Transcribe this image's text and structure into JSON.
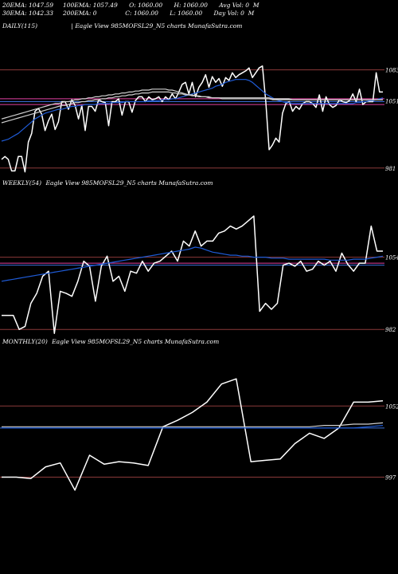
{
  "header": {
    "line1": "20EMA: 1047.59     100EMA: 1057.49      O: 1060.00      H: 1060.00      Avg Vol: 0  M",
    "line2": "30EMA: 1042.33     200EMA: 0               C: 1060.00      L: 1060.00      Day Vol: 0  M"
  },
  "colors": {
    "background": "#000000",
    "price": "#ffffff",
    "ema_blue": "#1f5bd6",
    "ema_white": "#cfcfcf",
    "level_red": "#8b3a3a",
    "level_pink": "#e040a0",
    "level_blue": "#3a6fd8"
  },
  "chart_data": [
    {
      "type": "line",
      "title": "DAILY(115)",
      "subtitle": "| Eagle   View  985MOFSL29_N5 charts MunafaSutra.com",
      "ylim": [
        975,
        1091
      ],
      "y_ticks": [
        {
          "label": "1083",
          "value": 1083
        },
        {
          "label": "1051",
          "value": 1051
        },
        {
          "label": "981",
          "value": 981
        }
      ],
      "levels": [
        {
          "value": 1083,
          "color": "level_red"
        },
        {
          "value": 1053,
          "color": "level_pink"
        },
        {
          "value": 1050,
          "color": "level_blue"
        },
        {
          "value": 1047,
          "color": "level_pink"
        },
        {
          "value": 981,
          "color": "level_red"
        }
      ],
      "series": [
        {
          "role": "price",
          "values": [
            990,
            993,
            990,
            978,
            978,
            993,
            993,
            977,
            1008,
            1017,
            1040,
            1043,
            1037,
            1020,
            1030,
            1037,
            1021,
            1029,
            1050,
            1050,
            1042,
            1052,
            1046,
            1032,
            1046,
            1020,
            1045,
            1045,
            1040,
            1052,
            1050,
            1049,
            1025,
            1050,
            1050,
            1053,
            1036,
            1050,
            1050,
            1039,
            1051,
            1055,
            1055,
            1050,
            1055,
            1052,
            1053,
            1055,
            1050,
            1055,
            1052,
            1058,
            1053,
            1060,
            1068,
            1070,
            1058,
            1070,
            1055,
            1065,
            1070,
            1078,
            1065,
            1076,
            1070,
            1074,
            1066,
            1075,
            1072,
            1080,
            1075,
            1078,
            1080,
            1082,
            1085,
            1075,
            1080,
            1085,
            1087,
            1050,
            1000,
            1005,
            1012,
            1008,
            1038,
            1048,
            1050,
            1040,
            1045,
            1042,
            1048,
            1050,
            1050,
            1048,
            1044,
            1057,
            1040,
            1055,
            1047,
            1044,
            1046,
            1052,
            1050,
            1049,
            1051,
            1058,
            1050,
            1063,
            1047,
            1050,
            1050,
            1050,
            1080,
            1060,
            1060
          ],
          "color": "price"
        },
        {
          "role": "ema",
          "values": [
            1009,
            1010,
            1011,
            1013,
            1015,
            1017,
            1020,
            1023,
            1026,
            1029,
            1032,
            1034,
            1036,
            1038,
            1039,
            1040,
            1041,
            1042,
            1042,
            1043,
            1044,
            1045,
            1045,
            1046,
            1046,
            1047,
            1047,
            1047,
            1047,
            1048,
            1048,
            1048,
            1048,
            1049,
            1049,
            1049,
            1049,
            1050,
            1050,
            1050,
            1050,
            1050,
            1050,
            1050,
            1051,
            1051,
            1051,
            1051,
            1052,
            1052,
            1052,
            1053,
            1053,
            1054,
            1055,
            1056,
            1057,
            1058,
            1059,
            1060,
            1061,
            1062,
            1063,
            1064,
            1066,
            1067,
            1068,
            1070,
            1071,
            1072,
            1073,
            1073,
            1073,
            1073,
            1072,
            1070,
            1067,
            1064,
            1061,
            1058,
            1056,
            1054,
            1052,
            1051,
            1050,
            1049,
            1049,
            1048,
            1048,
            1048,
            1048,
            1048,
            1048,
            1048,
            1048,
            1048,
            1048,
            1048,
            1048,
            1048,
            1048,
            1048,
            1048,
            1048,
            1048,
            1048,
            1049,
            1049,
            1050,
            1050,
            1051,
            1051,
            1052,
            1053,
            1054
          ],
          "color": "ema_blue"
        },
        {
          "role": "ema",
          "values": [
            1032,
            1033,
            1034,
            1035,
            1036,
            1037,
            1038,
            1039,
            1040,
            1041,
            1042,
            1043,
            1044,
            1045,
            1046,
            1047,
            1048,
            1048,
            1049,
            1050,
            1050,
            1051,
            1052,
            1052,
            1053,
            1053,
            1054,
            1054,
            1055,
            1055,
            1056,
            1056,
            1057,
            1057,
            1058,
            1058,
            1059,
            1059,
            1060,
            1060,
            1061,
            1061,
            1062,
            1062,
            1062,
            1063,
            1063,
            1063,
            1063,
            1063,
            1062,
            1062,
            1061,
            1060,
            1059,
            1058,
            1057,
            1057,
            1056,
            1056,
            1055,
            1055,
            1055,
            1054,
            1054,
            1054,
            1054,
            1054,
            1054,
            1054,
            1054,
            1054,
            1054,
            1054,
            1054,
            1054,
            1054,
            1054,
            1054,
            1054,
            1054,
            1053,
            1053,
            1053,
            1053,
            1053,
            1053,
            1052,
            1052,
            1052,
            1052,
            1052,
            1052,
            1052,
            1052,
            1052,
            1052,
            1052,
            1052,
            1052,
            1052,
            1052,
            1052,
            1052,
            1052,
            1052,
            1052,
            1052,
            1052,
            1052,
            1052,
            1052,
            1052,
            1052,
            1052
          ],
          "color": "ema_white"
        },
        {
          "role": "ema",
          "values": [
            1028,
            1029,
            1030,
            1031,
            1032,
            1033,
            1034,
            1035,
            1036,
            1037,
            1038,
            1039,
            1040,
            1041,
            1042,
            1043,
            1044,
            1045,
            1046,
            1046,
            1047,
            1048,
            1049,
            1049,
            1050,
            1050,
            1051,
            1051,
            1052,
            1052,
            1053,
            1053,
            1054,
            1054,
            1055,
            1055,
            1056,
            1056,
            1057,
            1057,
            1058,
            1058,
            1059,
            1059,
            1059,
            1060,
            1060,
            1060,
            1060,
            1060,
            1060,
            1059,
            1059,
            1058,
            1058,
            1057,
            1057,
            1056,
            1056,
            1055,
            1055,
            1055,
            1054,
            1054,
            1054,
            1054,
            1053,
            1053,
            1053,
            1053,
            1053,
            1053,
            1053,
            1053,
            1053,
            1053,
            1053,
            1053,
            1053,
            1053,
            1053,
            1052,
            1052,
            1052,
            1052,
            1052,
            1052,
            1052,
            1052,
            1052,
            1052,
            1052,
            1052,
            1052,
            1052,
            1052,
            1052,
            1052,
            1052,
            1052,
            1052,
            1052,
            1052,
            1052,
            1052,
            1052,
            1052,
            1052,
            1052,
            1052,
            1052,
            1052,
            1052,
            1052,
            1052
          ],
          "color": "ema_white"
        }
      ]
    },
    {
      "type": "line",
      "title": "WEEKLY(54)",
      "subtitle": "Eagle   View  985MOFSL29_N5 charts MunafaSutra.com",
      "ylim": [
        975,
        1091
      ],
      "y_ticks": [
        {
          "label": "1054",
          "value": 1054
        },
        {
          "label": "982",
          "value": 982
        }
      ],
      "levels": [
        {
          "value": 1054,
          "color": "level_red"
        },
        {
          "value": 1048,
          "color": "level_pink"
        },
        {
          "value": 1046,
          "color": "level_blue"
        },
        {
          "value": 982,
          "color": "level_red"
        }
      ],
      "series": [
        {
          "role": "price",
          "values": [
            996,
            996,
            996,
            982,
            985,
            1008,
            1018,
            1035,
            1040,
            978,
            1020,
            1018,
            1015,
            1030,
            1050,
            1045,
            1010,
            1045,
            1055,
            1030,
            1035,
            1020,
            1040,
            1038,
            1050,
            1040,
            1048,
            1050,
            1055,
            1060,
            1050,
            1070,
            1065,
            1080,
            1065,
            1070,
            1070,
            1078,
            1080,
            1085,
            1082,
            1085,
            1090,
            1095,
            1000,
            1008,
            1002,
            1008,
            1046,
            1048,
            1045,
            1050,
            1040,
            1042,
            1050,
            1046,
            1050,
            1040,
            1058,
            1047,
            1040,
            1048,
            1048,
            1085,
            1060,
            1060
          ],
          "color": "price"
        },
        {
          "role": "ema",
          "values": [
            1030,
            1031,
            1032,
            1033,
            1034,
            1035,
            1036,
            1037,
            1038,
            1039,
            1040,
            1041,
            1042,
            1043,
            1044,
            1045,
            1046,
            1047,
            1048,
            1049,
            1050,
            1051,
            1052,
            1053,
            1054,
            1055,
            1056,
            1057,
            1058,
            1059,
            1060,
            1061,
            1062,
            1064,
            1063,
            1061,
            1059,
            1058,
            1057,
            1056,
            1056,
            1055,
            1055,
            1054,
            1054,
            1054,
            1053,
            1053,
            1053,
            1052,
            1052,
            1052,
            1052,
            1052,
            1052,
            1052,
            1051,
            1051,
            1051,
            1051,
            1052,
            1052,
            1052,
            1053,
            1054,
            1055
          ],
          "color": "ema_blue"
        }
      ]
    },
    {
      "type": "line",
      "title": "MONTHLY(20)",
      "subtitle": "Eagle   View  985MOFSL29_N5 charts MunafaSutra.com",
      "ylim": [
        985,
        1075
      ],
      "y_ticks": [
        {
          "label": "1052",
          "value": 1052
        },
        {
          "label": "997",
          "value": 997
        }
      ],
      "levels": [
        {
          "value": 1052,
          "color": "level_red"
        },
        {
          "value": 1035,
          "color": "level_blue"
        },
        {
          "value": 997,
          "color": "level_red"
        }
      ],
      "series": [
        {
          "role": "price",
          "values": [
            997,
            997,
            996,
            1005,
            1008,
            987,
            1014,
            1007,
            1009,
            1008,
            1006,
            1036,
            1041,
            1047,
            1055,
            1069,
            1073,
            1009,
            1010,
            1011,
            1023,
            1031,
            1027,
            1035,
            1055,
            1055,
            1056
          ],
          "color": "price"
        },
        {
          "role": "ema",
          "values": [
            1035,
            1035,
            1035,
            1035,
            1035,
            1035,
            1035,
            1035,
            1035,
            1035,
            1035,
            1035,
            1035,
            1035,
            1035,
            1035,
            1035,
            1035,
            1035,
            1035,
            1035,
            1035,
            1035,
            1035,
            1035,
            1036,
            1037
          ],
          "color": "ema_blue"
        },
        {
          "role": "ema",
          "values": [
            1036,
            1036,
            1036,
            1036,
            1036,
            1036,
            1036,
            1036,
            1036,
            1036,
            1036,
            1036,
            1036,
            1036,
            1036,
            1036,
            1036,
            1036,
            1036,
            1036,
            1036,
            1036,
            1037,
            1037,
            1038,
            1038,
            1039
          ],
          "color": "ema_white"
        }
      ]
    }
  ]
}
